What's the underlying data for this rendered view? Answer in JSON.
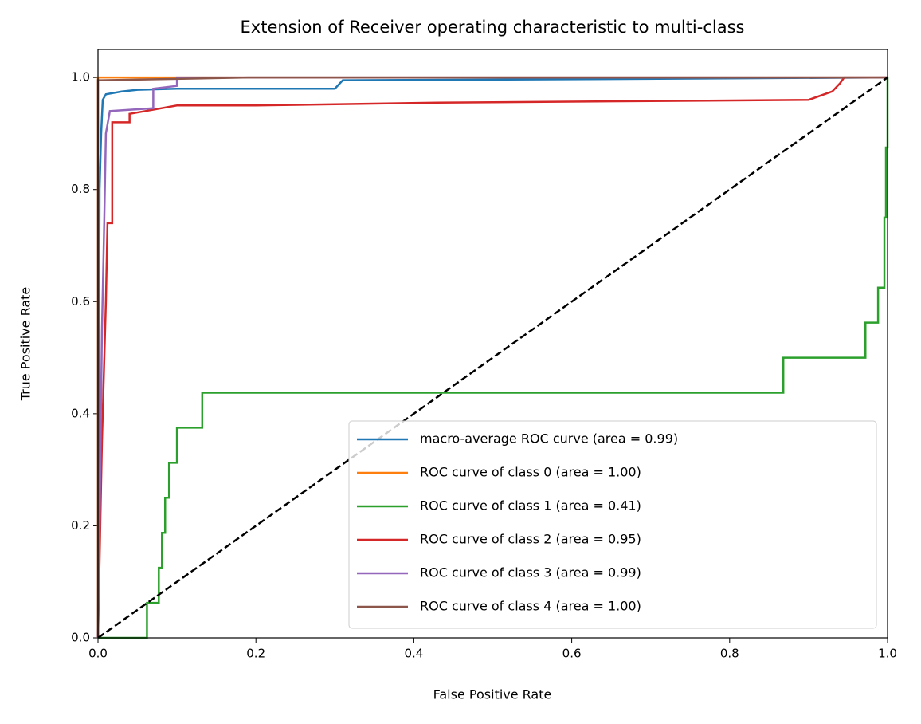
{
  "chart_data": {
    "type": "line",
    "title": "Extension of Receiver operating characteristic to multi-class",
    "x_label": "False Positive Rate",
    "y_label": "True Positive Rate",
    "xlim": [
      0,
      1
    ],
    "ylim": [
      0,
      1.05
    ],
    "xticks": [
      {
        "value": 0,
        "label": "0.0"
      },
      0.2,
      0.4,
      0.6,
      0.8,
      {
        "value": 1,
        "label": "1.0"
      }
    ],
    "yticks": [
      {
        "value": 0,
        "label": "0.0"
      },
      0.2,
      0.4,
      0.6,
      0.8,
      {
        "value": 1,
        "label": "1.0"
      }
    ],
    "legend": "lower right",
    "series": [
      {
        "name": "macro-average ROC curve (area = 0.99)",
        "color": "#1f77b4",
        "x": [
          0,
          0.002,
          0.004,
          0.006,
          0.01,
          0.03,
          0.05,
          0.1,
          0.3,
          0.31,
          0.62,
          1
        ],
        "values": [
          0,
          0.8,
          0.9,
          0.96,
          0.97,
          0.975,
          0.978,
          0.98,
          0.98,
          0.995,
          0.997,
          1
        ]
      },
      {
        "name": "ROC curve of class 0 (area = 1.00)",
        "color": "#ff7f0e",
        "x": [
          0,
          0,
          1
        ],
        "values": [
          0,
          1,
          1
        ]
      },
      {
        "name": "ROC curve of class 1 (area = 0.41)",
        "color": "#2ca02c",
        "x": [
          0,
          0.062,
          0.062,
          0.077,
          0.077,
          0.081,
          0.081,
          0.085,
          0.085,
          0.09,
          0.09,
          0.1,
          0.1,
          0.132,
          0.132,
          0.868,
          0.868,
          0.972,
          0.972,
          0.988,
          0.988,
          0.996,
          0.996,
          0.998,
          0.998,
          1,
          1
        ],
        "values": [
          0,
          0,
          0.0625,
          0.0625,
          0.125,
          0.125,
          0.1875,
          0.1875,
          0.25,
          0.25,
          0.3125,
          0.3125,
          0.375,
          0.375,
          0.4375,
          0.4375,
          0.5,
          0.5,
          0.5625,
          0.5625,
          0.625,
          0.625,
          0.75,
          0.75,
          0.875,
          0.875,
          1
        ]
      },
      {
        "name": "ROC curve of class 2 (area = 0.95)",
        "color": "#d62728",
        "x": [
          0,
          0.005,
          0.008,
          0.01,
          0.012,
          0.018,
          0.018,
          0.04,
          0.04,
          0.06,
          0.1,
          0.2,
          0.43,
          0.9,
          0.93,
          0.94,
          0.945,
          1
        ],
        "values": [
          0,
          0.35,
          0.5,
          0.6,
          0.74,
          0.74,
          0.92,
          0.92,
          0.935,
          0.94,
          0.95,
          0.95,
          0.955,
          0.96,
          0.975,
          0.99,
          1,
          1
        ]
      },
      {
        "name": "ROC curve of class 3 (area = 0.99)",
        "color": "#9467bd",
        "x": [
          0,
          0.002,
          0.005,
          0.008,
          0.01,
          0.015,
          0.07,
          0.07,
          0.1,
          0.1,
          1
        ],
        "values": [
          0,
          0.2,
          0.55,
          0.75,
          0.9,
          0.94,
          0.945,
          0.98,
          0.985,
          1,
          1
        ]
      },
      {
        "name": "ROC curve of class 4 (area = 1.00)",
        "color": "#8c564b",
        "x": [
          0,
          0,
          0.19,
          1
        ],
        "values": [
          0,
          0.995,
          1,
          1
        ]
      }
    ]
  }
}
